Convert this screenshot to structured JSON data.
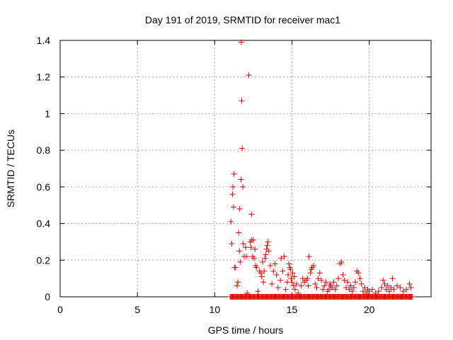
{
  "chart_data": {
    "type": "scatter",
    "title": "Day 191 of 2019, SRMTID for receiver mac1",
    "xlabel": "GPS time / hours",
    "ylabel": "SRMTID / TECUs",
    "xlim": [
      0,
      24
    ],
    "ylim": [
      0,
      1.4
    ],
    "xticks": [
      0,
      5,
      10,
      15,
      20
    ],
    "xtick_labels": [
      "0",
      "5",
      "10",
      "15",
      "20"
    ],
    "yticks": [
      0,
      0.2,
      0.4,
      0.6,
      0.8,
      1,
      1.2,
      1.4
    ],
    "ytick_labels": [
      "0",
      "0.2",
      "0.4",
      "0.6",
      "0.8",
      "1",
      "1.2",
      "1.4"
    ],
    "grid": true,
    "marker": "+",
    "color": "#e00000",
    "baseline_zero_range": [
      11.0,
      22.8
    ],
    "points": [
      [
        11.05,
        0.41
      ],
      [
        11.1,
        0.29
      ],
      [
        11.15,
        0.56
      ],
      [
        11.18,
        0.6
      ],
      [
        11.22,
        0.49
      ],
      [
        11.25,
        0.67
      ],
      [
        11.28,
        0.16
      ],
      [
        11.35,
        0.16
      ],
      [
        11.45,
        0.06
      ],
      [
        11.5,
        0.08
      ],
      [
        11.55,
        0.35
      ],
      [
        11.6,
        0.25
      ],
      [
        11.62,
        0.48
      ],
      [
        11.65,
        0.19
      ],
      [
        11.7,
        0.64
      ],
      [
        11.72,
        1.39
      ],
      [
        11.75,
        1.07
      ],
      [
        11.78,
        0.81
      ],
      [
        11.82,
        0.6
      ],
      [
        11.85,
        0.29
      ],
      [
        11.9,
        0.22
      ],
      [
        12.0,
        0.27
      ],
      [
        12.05,
        0.22
      ],
      [
        12.1,
        0.02
      ],
      [
        12.2,
        1.21
      ],
      [
        12.3,
        0.3
      ],
      [
        12.35,
        0.27
      ],
      [
        12.38,
        0.45
      ],
      [
        12.4,
        0.31
      ],
      [
        12.45,
        0.22
      ],
      [
        12.5,
        0.31
      ],
      [
        12.55,
        0.21
      ],
      [
        12.6,
        0.26
      ],
      [
        12.65,
        0.17
      ],
      [
        12.7,
        0.16
      ],
      [
        12.8,
        0.03
      ],
      [
        12.9,
        0.14
      ],
      [
        13.0,
        0.13
      ],
      [
        13.05,
        0.11
      ],
      [
        13.1,
        0.19
      ],
      [
        13.15,
        0.08
      ],
      [
        13.2,
        0.14
      ],
      [
        13.25,
        0.21
      ],
      [
        13.3,
        0.23
      ],
      [
        13.35,
        0.26
      ],
      [
        13.4,
        0.28
      ],
      [
        13.45,
        0.3
      ],
      [
        13.5,
        0.25
      ],
      [
        13.6,
        0.17
      ],
      [
        13.7,
        0.07
      ],
      [
        13.8,
        0.14
      ],
      [
        13.9,
        0.18
      ],
      [
        14.0,
        0.12
      ],
      [
        14.1,
        0.05
      ],
      [
        14.25,
        0.09
      ],
      [
        14.3,
        0.21
      ],
      [
        14.4,
        0.14
      ],
      [
        14.5,
        0.22
      ],
      [
        14.6,
        0.04
      ],
      [
        14.7,
        0.08
      ],
      [
        14.75,
        0.12
      ],
      [
        14.8,
        0.18
      ],
      [
        14.85,
        0.16
      ],
      [
        14.9,
        0.15
      ],
      [
        14.95,
        0.1
      ],
      [
        15.0,
        0.08
      ],
      [
        15.05,
        0.13
      ],
      [
        15.1,
        0.06
      ],
      [
        15.15,
        0.11
      ],
      [
        15.2,
        0.04
      ],
      [
        15.3,
        0.07
      ],
      [
        15.4,
        0.02
      ],
      [
        15.6,
        0.06
      ],
      [
        15.7,
        0.1
      ],
      [
        15.8,
        0.08
      ],
      [
        15.9,
        0.09
      ],
      [
        16.0,
        0.1
      ],
      [
        16.05,
        0.06
      ],
      [
        16.1,
        0.22
      ],
      [
        16.2,
        0.13
      ],
      [
        16.25,
        0.15
      ],
      [
        16.3,
        0.16
      ],
      [
        16.4,
        0.17
      ],
      [
        16.5,
        0.07
      ],
      [
        16.6,
        0.05
      ],
      [
        16.7,
        0.1
      ],
      [
        16.8,
        0.13
      ],
      [
        16.9,
        0.09
      ],
      [
        17.0,
        0.04
      ],
      [
        17.1,
        0.06
      ],
      [
        17.2,
        0.08
      ],
      [
        17.3,
        0.03
      ],
      [
        17.4,
        0.04
      ],
      [
        17.45,
        0.07
      ],
      [
        17.5,
        0.06
      ],
      [
        17.6,
        0.05
      ],
      [
        17.7,
        0.08
      ],
      [
        17.8,
        0.04
      ],
      [
        17.9,
        0.06
      ],
      [
        18.0,
        0.1
      ],
      [
        18.1,
        0.18
      ],
      [
        18.2,
        0.19
      ],
      [
        18.3,
        0.12
      ],
      [
        18.4,
        0.09
      ],
      [
        18.5,
        0.05
      ],
      [
        18.6,
        0.08
      ],
      [
        18.7,
        0.04
      ],
      [
        18.8,
        0.06
      ],
      [
        18.9,
        0.03
      ],
      [
        19.0,
        0.05
      ],
      [
        19.1,
        0.08
      ],
      [
        19.2,
        0.14
      ],
      [
        19.3,
        0.13
      ],
      [
        19.4,
        0.1
      ],
      [
        19.5,
        0.07
      ],
      [
        19.6,
        0.03
      ],
      [
        19.7,
        0.05
      ],
      [
        19.8,
        0.02
      ],
      [
        19.9,
        0.04
      ],
      [
        20.0,
        0.03
      ],
      [
        20.2,
        0.04
      ],
      [
        20.4,
        0.02
      ],
      [
        20.6,
        0.03
      ],
      [
        20.8,
        0.05
      ],
      [
        20.9,
        0.09
      ],
      [
        21.0,
        0.07
      ],
      [
        21.1,
        0.04
      ],
      [
        21.2,
        0.06
      ],
      [
        21.3,
        0.03
      ],
      [
        21.4,
        0.05
      ],
      [
        21.5,
        0.1
      ],
      [
        21.6,
        0.04
      ],
      [
        21.8,
        0.06
      ],
      [
        22.0,
        0.05
      ],
      [
        22.2,
        0.03
      ],
      [
        22.4,
        0.04
      ],
      [
        22.6,
        0.07
      ],
      [
        22.7,
        0.05
      ]
    ]
  }
}
